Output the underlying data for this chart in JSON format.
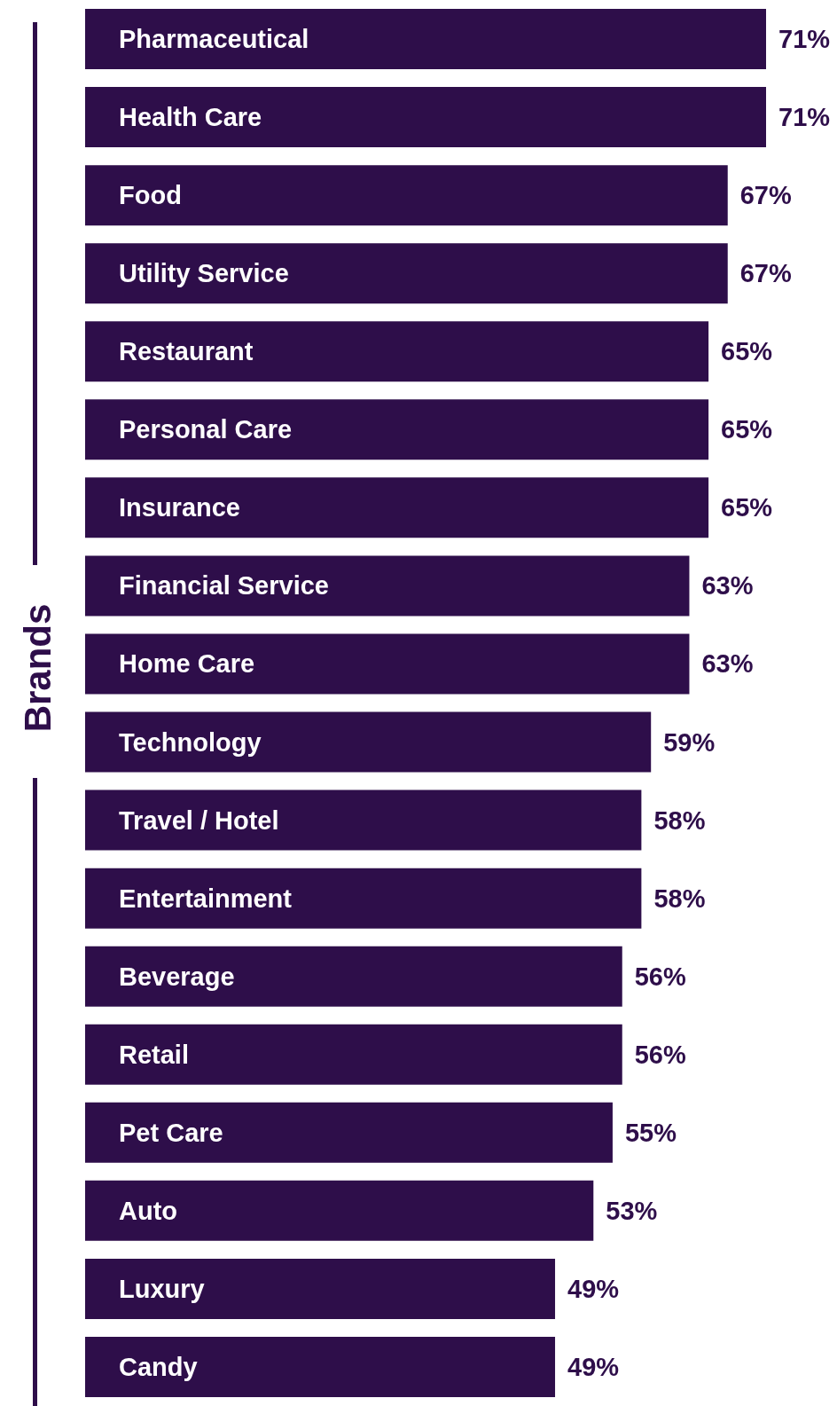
{
  "chart_data": {
    "type": "bar",
    "orientation": "horizontal",
    "ylabel": "Brands",
    "categories": [
      "Pharmaceutical",
      "Health Care",
      "Food",
      "Utility Service",
      "Restaurant",
      "Personal Care",
      "Insurance",
      "Financial Service",
      "Home Care",
      "Technology",
      "Travel / Hotel",
      "Entertainment",
      "Beverage",
      "Retail",
      "Pet Care",
      "Auto",
      "Luxury",
      "Candy"
    ],
    "values": [
      71,
      71,
      67,
      67,
      65,
      65,
      65,
      63,
      63,
      59,
      58,
      58,
      56,
      56,
      55,
      53,
      49,
      49
    ],
    "value_labels": [
      "71%",
      "71%",
      "67%",
      "67%",
      "65%",
      "65%",
      "65%",
      "63%",
      "63%",
      "59%",
      "58%",
      "58%",
      "56%",
      "56%",
      "55%",
      "53%",
      "49%",
      "49%"
    ],
    "color": "#2e0e4a"
  }
}
